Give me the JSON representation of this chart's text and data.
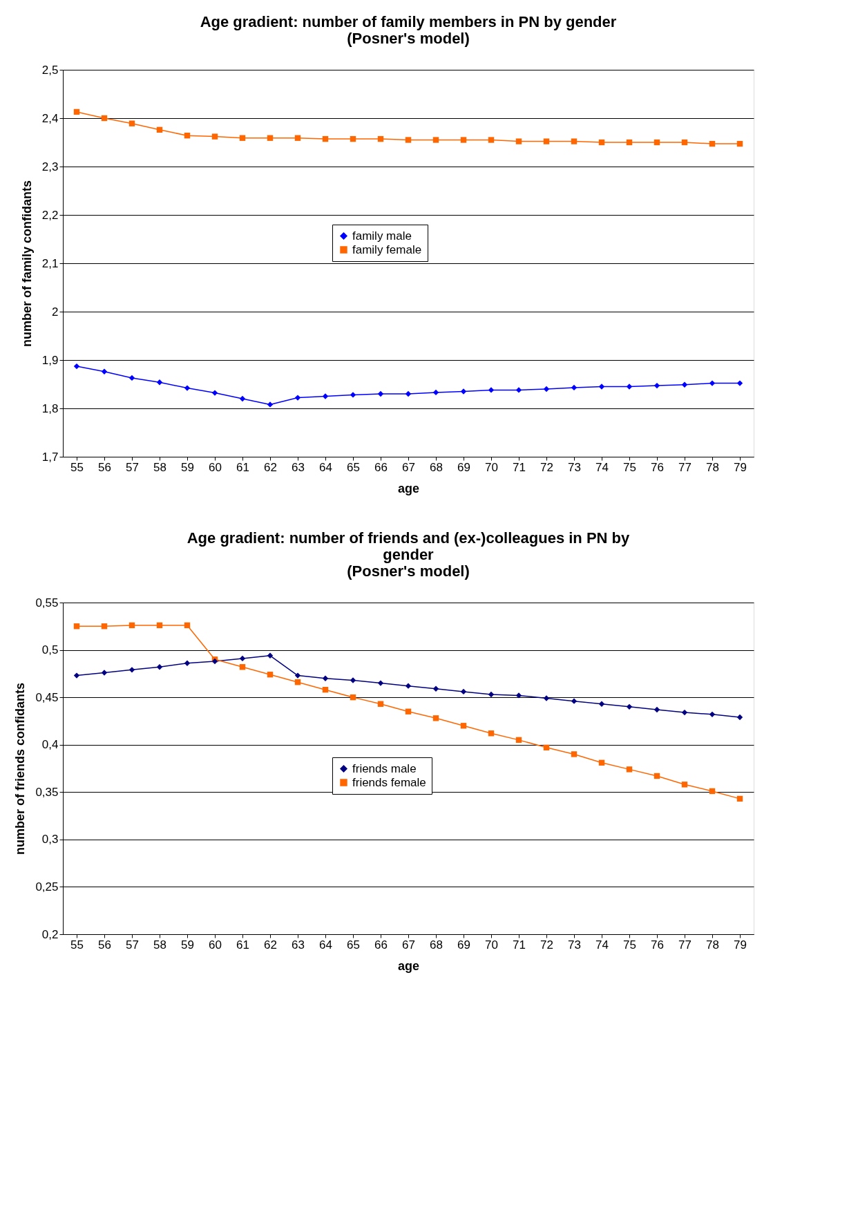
{
  "chart_data": [
    {
      "type": "line",
      "title": "Age gradient: number of family members in PN by gender",
      "subtitle": "(Posner's model)",
      "xlabel": "age",
      "ylabel": "number of family confidants",
      "categories": [
        "55",
        "56",
        "57",
        "58",
        "59",
        "60",
        "61",
        "62",
        "63",
        "64",
        "65",
        "66",
        "67",
        "68",
        "69",
        "70",
        "71",
        "72",
        "73",
        "74",
        "75",
        "76",
        "77",
        "78",
        "79"
      ],
      "series": [
        {
          "name": "family male",
          "color": "#0000ff",
          "marker": "diamond",
          "values": [
            1.887,
            1.876,
            1.863,
            1.854,
            1.842,
            1.832,
            1.82,
            1.808,
            1.822,
            1.825,
            1.828,
            1.83,
            1.83,
            1.833,
            1.835,
            1.838,
            1.838,
            1.84,
            1.843,
            1.845,
            1.845,
            1.847,
            1.849,
            1.852,
            1.852
          ]
        },
        {
          "name": "family female",
          "color": "#ff6600",
          "marker": "square",
          "values": [
            2.413,
            2.4,
            2.389,
            2.376,
            2.364,
            2.362,
            2.359,
            2.359,
            2.359,
            2.357,
            2.357,
            2.357,
            2.355,
            2.355,
            2.355,
            2.355,
            2.352,
            2.352,
            2.352,
            2.35,
            2.35,
            2.35,
            2.35,
            2.347,
            2.347
          ]
        }
      ],
      "ylim": [
        1.7,
        2.5
      ],
      "yticks": [
        {
          "value": 1.7,
          "label": "1,7"
        },
        {
          "value": 1.8,
          "label": "1,8"
        },
        {
          "value": 1.9,
          "label": "1,9"
        },
        2,
        {
          "value": 2.1,
          "label": "2,1"
        },
        {
          "value": 2.2,
          "label": "2,2"
        },
        {
          "value": 2.3,
          "label": "2,3"
        },
        {
          "value": 2.4,
          "label": "2,4"
        },
        {
          "value": 2.5,
          "label": "2,5"
        }
      ],
      "grid": "y",
      "legend": "center",
      "line_style": "solid"
    },
    {
      "type": "line",
      "title": "Age gradient: number of friends and (ex-)colleagues in PN by gender",
      "subtitle": "(Posner's model)",
      "xlabel": "age",
      "ylabel": "number of friends confidants",
      "categories": [
        "55",
        "56",
        "57",
        "58",
        "59",
        "60",
        "61",
        "62",
        "63",
        "64",
        "65",
        "66",
        "67",
        "68",
        "69",
        "70",
        "71",
        "72",
        "73",
        "74",
        "75",
        "76",
        "77",
        "78",
        "79"
      ],
      "series": [
        {
          "name": "friends male",
          "color": "#000080",
          "marker": "diamond",
          "values": [
            0.473,
            0.476,
            0.479,
            0.482,
            0.486,
            0.488,
            0.491,
            0.494,
            0.473,
            0.47,
            0.468,
            0.465,
            0.462,
            0.459,
            0.456,
            0.453,
            0.452,
            0.449,
            0.446,
            0.443,
            0.44,
            0.437,
            0.434,
            0.432,
            0.429
          ]
        },
        {
          "name": "friends female",
          "color": "#ff6600",
          "marker": "square",
          "values": [
            0.525,
            0.525,
            0.526,
            0.526,
            0.526,
            0.49,
            0.482,
            0.474,
            0.466,
            0.458,
            0.45,
            0.443,
            0.435,
            0.428,
            0.42,
            0.412,
            0.405,
            0.397,
            0.39,
            0.381,
            0.374,
            0.367,
            0.358,
            0.351,
            0.343
          ]
        }
      ],
      "ylim": [
        0.2,
        0.55
      ],
      "yticks": [
        {
          "value": 0.2,
          "label": "0,2"
        },
        {
          "value": 0.25,
          "label": "0,25"
        },
        {
          "value": 0.3,
          "label": "0,3"
        },
        {
          "value": 0.35,
          "label": "0,35"
        },
        {
          "value": 0.4,
          "label": "0,4"
        },
        {
          "value": 0.45,
          "label": "0,45"
        },
        {
          "value": 0.5,
          "label": "0,5"
        },
        {
          "value": 0.55,
          "label": "0,55"
        }
      ],
      "grid": "y",
      "legend": "center",
      "line_style": "solid"
    }
  ]
}
